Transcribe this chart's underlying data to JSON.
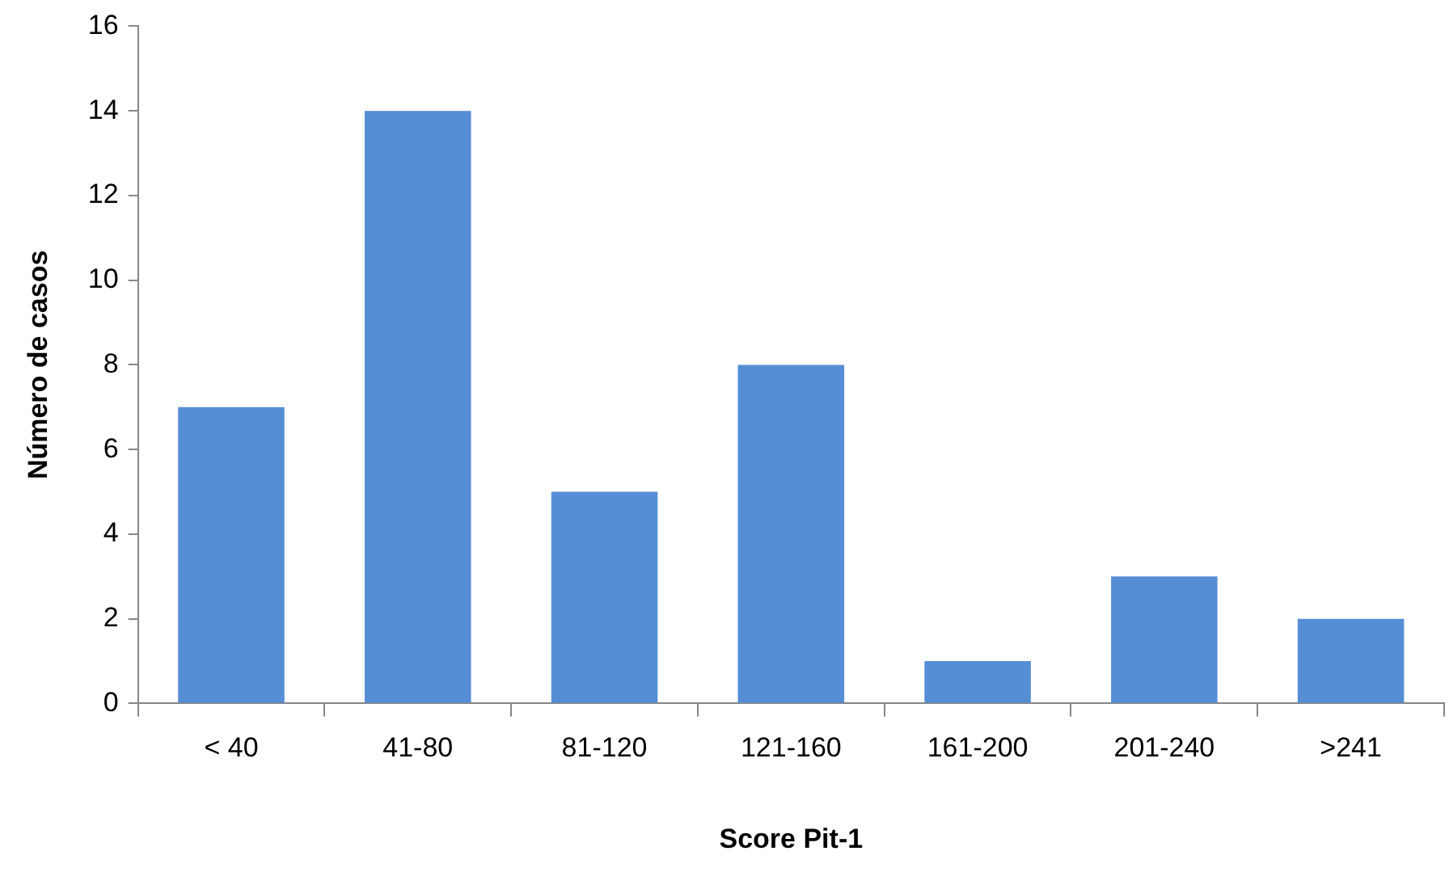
{
  "chart_data": {
    "type": "bar",
    "xlabel": "Score Pit-1",
    "ylabel": "Número de casos",
    "categories": [
      "< 40",
      "41-80",
      "81-120",
      "121-160",
      "161-200",
      "201-240",
      ">241"
    ],
    "values": [
      7,
      14,
      5,
      8,
      1,
      3,
      2
    ],
    "color": "#558ed5",
    "ylim": [
      0,
      16
    ],
    "yticks": [
      0,
      2,
      4,
      6,
      8,
      10,
      12,
      14,
      16
    ],
    "grid": false,
    "legend": false
  }
}
